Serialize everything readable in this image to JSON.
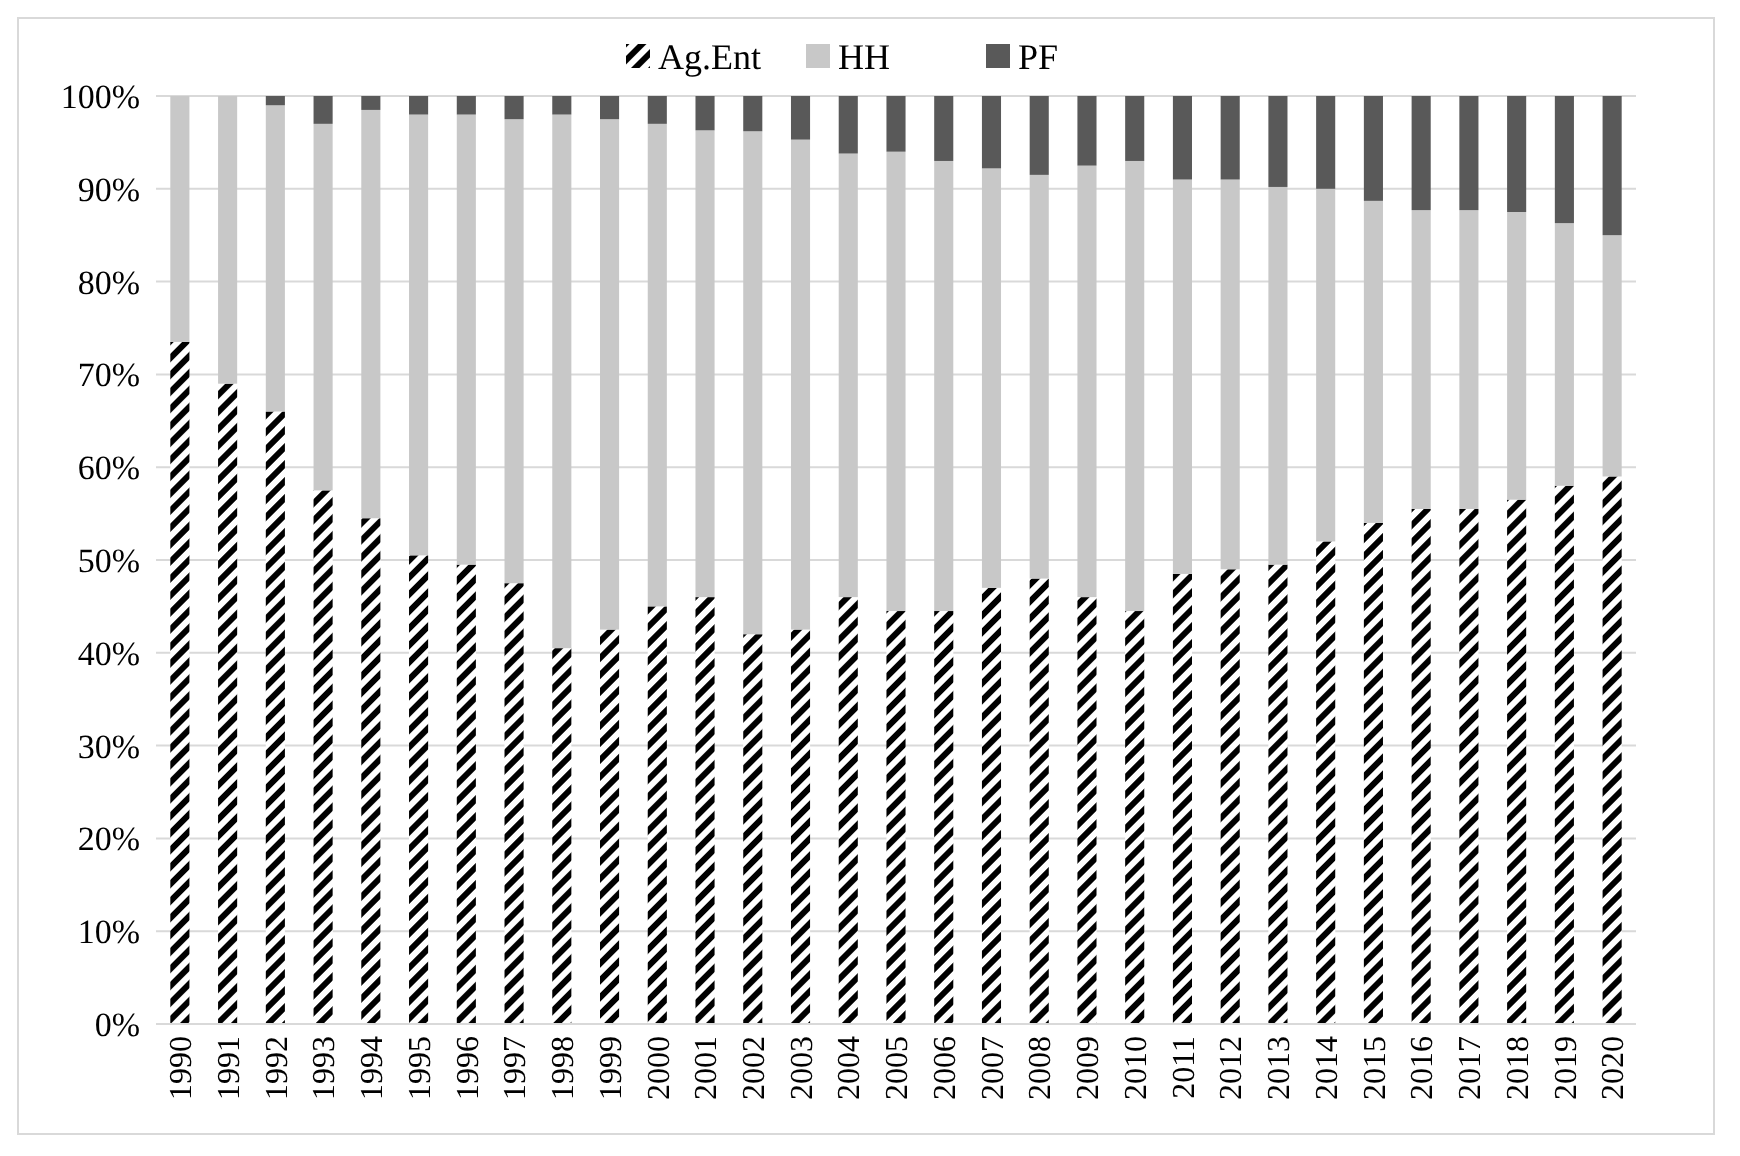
{
  "chart_data": {
    "type": "bar",
    "stacked": true,
    "categories": [
      "1990",
      "1991",
      "1992",
      "1993",
      "1994",
      "1995",
      "1996",
      "1997",
      "1998",
      "1999",
      "2000",
      "2001",
      "2002",
      "2003",
      "2004",
      "2005",
      "2006",
      "2007",
      "2008",
      "2009",
      "2010",
      "2011",
      "2012",
      "2013",
      "2014",
      "2015",
      "2016",
      "2017",
      "2018",
      "2019",
      "2020"
    ],
    "series": [
      {
        "name": "Ag.Ent",
        "color": "#000000",
        "values": [
          73.5,
          69,
          66,
          57.5,
          54.5,
          50.5,
          49.5,
          47.5,
          40.5,
          42.5,
          45,
          46,
          42,
          42.5,
          46,
          44.5,
          44.5,
          47,
          48,
          46,
          44.5,
          48.5,
          49,
          49.5,
          52,
          54,
          55.5,
          55.5,
          56.5,
          58,
          59
        ]
      },
      {
        "name": "HH",
        "color": "#c8c8c8",
        "values": [
          26.5,
          31,
          33,
          39.5,
          44,
          47.5,
          48.5,
          50,
          57.5,
          55,
          52,
          50.3,
          54.2,
          52.8,
          47.8,
          49.5,
          48.5,
          45.2,
          43.5,
          46.5,
          48.5,
          42.5,
          42,
          40.7,
          38,
          34.7,
          32.2,
          32.2,
          31,
          28.3,
          26
        ]
      },
      {
        "name": "PF",
        "color": "#595959",
        "values": [
          0,
          0,
          1,
          3,
          1.5,
          2,
          2,
          2.5,
          2,
          2.5,
          3,
          3.7,
          3.8,
          4.7,
          6.2,
          6,
          7,
          7.8,
          8.5,
          7.5,
          7,
          9,
          9,
          9.8,
          10,
          11.3,
          12.3,
          12.3,
          12.5,
          13.7,
          15
        ]
      }
    ],
    "ylim": [
      0,
      100
    ],
    "yticks": [
      {
        "value": 0,
        "label": "0%"
      },
      {
        "value": 10,
        "label": "10%"
      },
      {
        "value": 20,
        "label": "20%"
      },
      {
        "value": 30,
        "label": "30%"
      },
      {
        "value": 40,
        "label": "40%"
      },
      {
        "value": 50,
        "label": "50%"
      },
      {
        "value": 60,
        "label": "60%"
      },
      {
        "value": 70,
        "label": "70%"
      },
      {
        "value": 80,
        "label": "80%"
      },
      {
        "value": 90,
        "label": "90%"
      },
      {
        "value": 100,
        "label": "100%"
      }
    ],
    "grid": "y",
    "legend": "top"
  }
}
